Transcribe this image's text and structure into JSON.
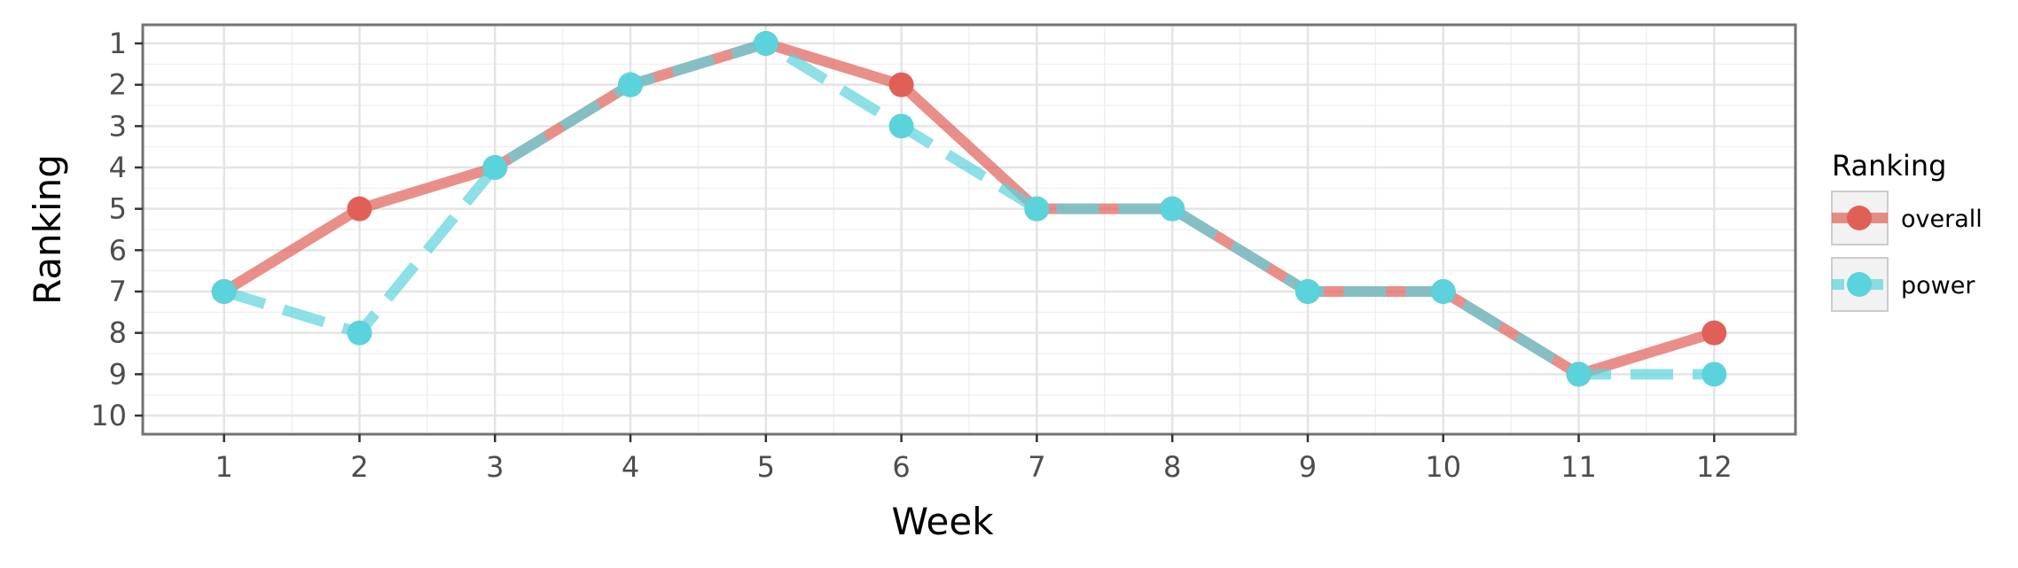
{
  "chart_data": {
    "type": "line",
    "xlabel": "Week",
    "ylabel": "Ranking",
    "x": [
      1,
      2,
      3,
      4,
      5,
      6,
      7,
      8,
      9,
      10,
      11,
      12
    ],
    "x_ticks": [
      "1",
      "2",
      "3",
      "4",
      "5",
      "6",
      "7",
      "8",
      "9",
      "10",
      "11",
      "12"
    ],
    "y_ticks": [
      "1",
      "2",
      "3",
      "4",
      "5",
      "6",
      "7",
      "8",
      "9",
      "10"
    ],
    "xlim": [
      0.4,
      12.6
    ],
    "ylim": [
      0.55,
      10.45
    ],
    "y_reversed": true,
    "grid": true,
    "legend": {
      "title": "Ranking",
      "position": "right"
    },
    "series": [
      {
        "name": "overall",
        "color": "#e06058",
        "line_style": "solid",
        "values": [
          7,
          5,
          4,
          2,
          1,
          2,
          5,
          5,
          7,
          7,
          9,
          8
        ]
      },
      {
        "name": "power",
        "color": "#5bd3dc",
        "line_style": "dashed",
        "values": [
          7,
          8,
          4,
          2,
          1,
          3,
          5,
          5,
          7,
          7,
          9,
          9
        ]
      }
    ]
  }
}
